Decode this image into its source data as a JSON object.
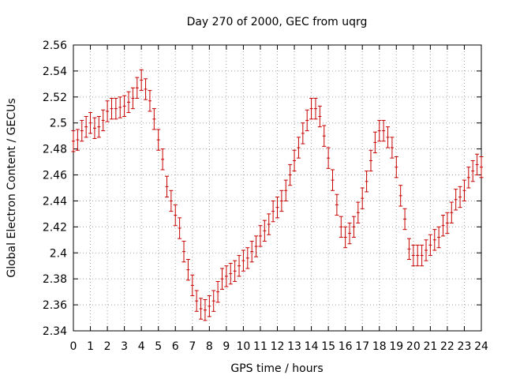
{
  "chart_data": {
    "type": "line",
    "title": "Day 270 of 2000, GEC from uqrg",
    "xlabel": "GPS time / hours",
    "ylabel": "Global Electron Content / GECUs",
    "xlim": [
      0,
      24
    ],
    "ylim": [
      2.34,
      2.56
    ],
    "xticks": [
      "0",
      "1",
      "2",
      "3",
      "4",
      "5",
      "6",
      "7",
      "8",
      "9",
      "10",
      "11",
      "12",
      "13",
      "14",
      "15",
      "16",
      "17",
      "18",
      "19",
      "20",
      "21",
      "22",
      "23",
      "24"
    ],
    "yticks": [
      "2.34",
      "2.36",
      "2.38",
      "2.4",
      "2.42",
      "2.44",
      "2.46",
      "2.48",
      "2.5",
      "2.52",
      "2.54",
      "2.56"
    ],
    "grid": true,
    "series_color": "#c80000",
    "error_bar": 0.008,
    "series": [
      {
        "x": [
          0,
          0.25,
          0.5,
          0.75,
          1,
          1.25,
          1.5,
          1.75,
          2,
          2.25,
          2.5,
          2.75,
          3,
          3.25,
          3.5,
          3.75,
          4,
          4.25,
          4.5,
          4.75,
          5,
          5.25,
          5.5,
          5.75,
          6,
          6.25,
          6.5,
          6.75,
          7,
          7.25,
          7.5,
          7.75,
          8,
          8.25,
          8.5,
          8.75,
          9,
          9.25,
          9.5,
          9.75,
          10,
          10.25,
          10.5,
          10.75,
          11,
          11.25,
          11.5,
          11.75,
          12,
          12.25,
          12.5,
          12.75,
          13,
          13.25,
          13.5,
          13.75,
          14,
          14.25,
          14.5,
          14.75,
          15,
          15.25,
          15.5,
          15.75,
          16,
          16.25,
          16.5,
          16.75,
          17,
          17.25,
          17.5,
          17.75,
          18,
          18.25,
          18.5,
          18.75,
          19,
          19.25,
          19.5,
          19.75,
          20,
          20.25,
          20.5,
          20.75,
          21,
          21.25,
          21.5,
          21.75,
          22,
          22.25,
          22.5,
          22.75,
          23,
          23.25,
          23.5,
          23.75,
          24
        ],
        "y": [
          2.486,
          2.487,
          2.494,
          2.497,
          2.5,
          2.496,
          2.497,
          2.502,
          2.509,
          2.511,
          2.511,
          2.512,
          2.513,
          2.516,
          2.519,
          2.527,
          2.533,
          2.526,
          2.517,
          2.503,
          2.487,
          2.472,
          2.451,
          2.44,
          2.429,
          2.419,
          2.401,
          2.387,
          2.375,
          2.363,
          2.357,
          2.356,
          2.359,
          2.363,
          2.37,
          2.38,
          2.382,
          2.384,
          2.386,
          2.39,
          2.394,
          2.396,
          2.401,
          2.405,
          2.413,
          2.417,
          2.422,
          2.432,
          2.435,
          2.44,
          2.448,
          2.46,
          2.471,
          2.481,
          2.492,
          2.502,
          2.511,
          2.511,
          2.505,
          2.49,
          2.473,
          2.456,
          2.437,
          2.42,
          2.412,
          2.415,
          2.42,
          2.431,
          2.442,
          2.455,
          2.471,
          2.485,
          2.494,
          2.494,
          2.489,
          2.481,
          2.466,
          2.444,
          2.426,
          2.403,
          2.398,
          2.398,
          2.398,
          2.402,
          2.406,
          2.41,
          2.412,
          2.421,
          2.423,
          2.431,
          2.441,
          2.443,
          2.448,
          2.458,
          2.463,
          2.468,
          2.466
        ]
      }
    ]
  }
}
